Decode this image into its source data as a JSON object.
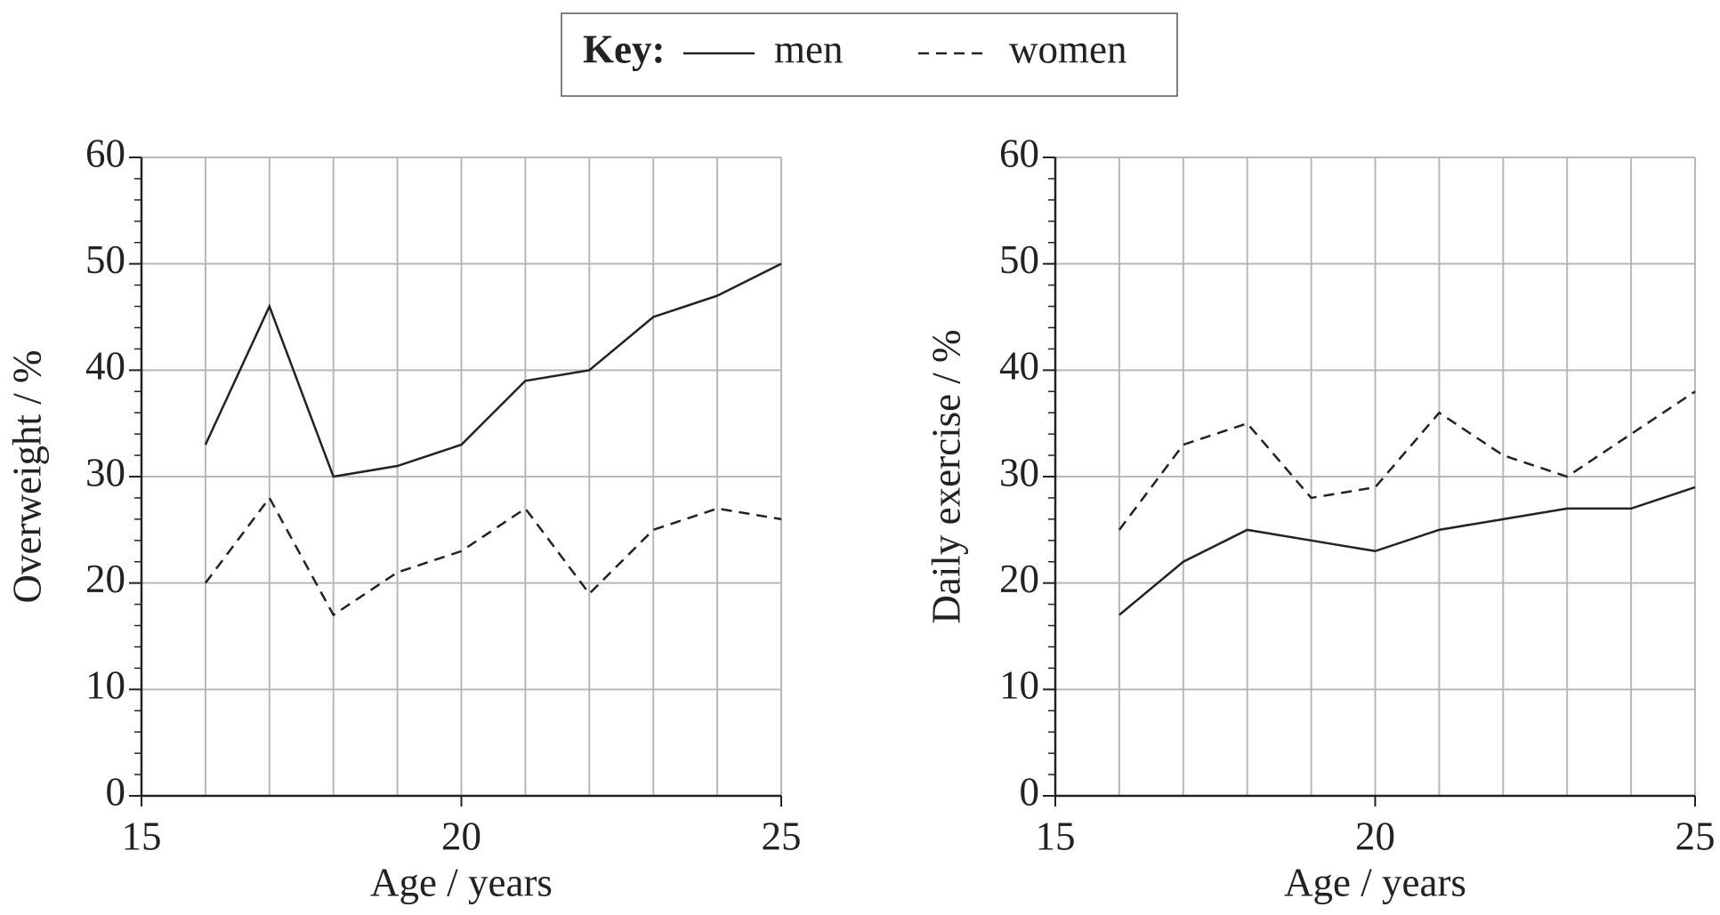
{
  "legend_title": "Key:",
  "chart_data": [
    {
      "type": "line",
      "xlabel": "Age / years",
      "ylabel": "Overweight / %",
      "x": [
        16,
        17,
        18,
        19,
        20,
        21,
        22,
        23,
        24,
        25
      ],
      "series": [
        {
          "name": "men",
          "color": "#222222",
          "dash": "solid",
          "values": [
            33,
            46,
            30,
            31,
            33,
            39,
            40,
            45,
            47,
            50
          ]
        },
        {
          "name": "women",
          "color": "#222222",
          "dash": "dashed",
          "values": [
            20,
            28,
            17,
            21,
            23,
            27,
            19,
            25,
            27,
            26
          ]
        }
      ],
      "xlim": [
        15,
        25
      ],
      "ylim": [
        0,
        60
      ],
      "xticks": [
        15,
        20,
        25
      ],
      "yticks": [
        0,
        10,
        20,
        30,
        40,
        50,
        60
      ],
      "xgrid": [
        15,
        16,
        17,
        18,
        19,
        20,
        21,
        22,
        23,
        24,
        25
      ],
      "y_minor_step": 2,
      "grid": true
    },
    {
      "type": "line",
      "xlabel": "Age / years",
      "ylabel": "Daily exercise / %",
      "x": [
        16,
        17,
        18,
        19,
        20,
        21,
        22,
        23,
        24,
        25
      ],
      "series": [
        {
          "color": "#222222",
          "dash": "solid",
          "values": [
            17,
            22,
            25,
            24,
            23,
            25,
            26,
            27,
            27,
            29
          ]
        },
        {
          "color": "#222222",
          "dash": "dashed",
          "values": [
            25,
            33,
            35,
            28,
            29,
            36,
            32,
            30,
            34,
            38
          ]
        }
      ],
      "xlim": [
        15,
        25
      ],
      "ylim": [
        0,
        60
      ],
      "xticks": [
        15,
        20,
        25
      ],
      "yticks": [
        0,
        10,
        20,
        30,
        40,
        50,
        60
      ],
      "xgrid": [
        15,
        16,
        17,
        18,
        19,
        20,
        21,
        22,
        23,
        24,
        25
      ],
      "y_minor_step": 2,
      "grid": true
    }
  ]
}
